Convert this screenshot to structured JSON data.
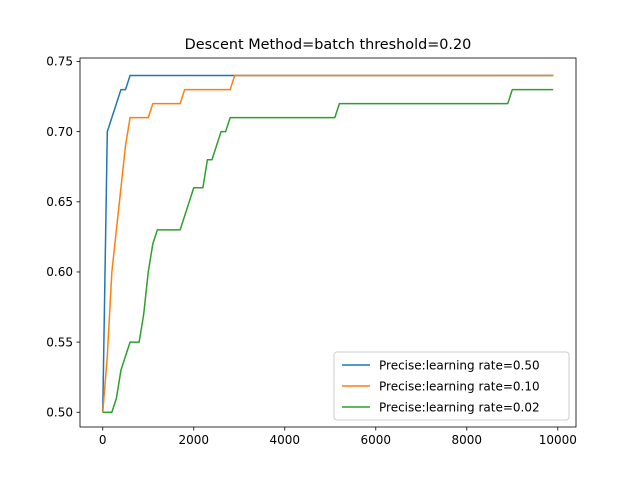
{
  "chart_data": {
    "type": "line",
    "title": "Descent Method=batch threshold=0.20",
    "xlabel": "",
    "ylabel": "",
    "xlim": [
      -500,
      10400
    ],
    "ylim": [
      0.4895,
      0.7525
    ],
    "x_ticks": [
      0,
      2000,
      4000,
      6000,
      8000,
      10000
    ],
    "y_ticks": [
      0.5,
      0.55,
      0.6,
      0.65,
      0.7,
      0.75
    ],
    "x_tick_labels": [
      "0",
      "2000",
      "4000",
      "6000",
      "8000",
      "10000"
    ],
    "y_tick_labels": [
      "0.50",
      "0.55",
      "0.60",
      "0.65",
      "0.70",
      "0.75"
    ],
    "grid": false,
    "legend_position": "lower-right",
    "series": [
      {
        "name": "Precise:learning rate=0.50",
        "color": "#1f77b4",
        "x": [
          0,
          100,
          200,
          300,
          400,
          500,
          600,
          700,
          800,
          2800,
          2900,
          9900
        ],
        "y": [
          0.5,
          0.7,
          0.71,
          0.72,
          0.73,
          0.73,
          0.74,
          0.74,
          0.74,
          0.74,
          0.74,
          0.74
        ]
      },
      {
        "name": "Precise:learning rate=0.10",
        "color": "#ff7f0e",
        "x": [
          0,
          100,
          200,
          300,
          400,
          500,
          600,
          700,
          800,
          900,
          1000,
          1100,
          1200,
          1300,
          1600,
          1700,
          1800,
          1900,
          2000,
          2700,
          2800,
          2900,
          3000,
          9900
        ],
        "y": [
          0.5,
          0.54,
          0.6,
          0.63,
          0.66,
          0.69,
          0.71,
          0.71,
          0.71,
          0.71,
          0.71,
          0.72,
          0.72,
          0.72,
          0.72,
          0.72,
          0.73,
          0.73,
          0.73,
          0.73,
          0.73,
          0.74,
          0.74,
          0.74
        ]
      },
      {
        "name": "Precise:learning rate=0.02",
        "color": "#2ca02c",
        "x": [
          0,
          100,
          200,
          300,
          400,
          500,
          600,
          700,
          800,
          900,
          1000,
          1100,
          1200,
          1300,
          1500,
          1700,
          1800,
          1900,
          2000,
          2100,
          2200,
          2300,
          2400,
          2500,
          2600,
          2700,
          2800,
          2900,
          3000,
          5100,
          5200,
          5300,
          8900,
          9000,
          9900
        ],
        "y": [
          0.5,
          0.5,
          0.5,
          0.51,
          0.53,
          0.54,
          0.55,
          0.55,
          0.55,
          0.57,
          0.6,
          0.62,
          0.63,
          0.63,
          0.63,
          0.63,
          0.64,
          0.65,
          0.66,
          0.66,
          0.66,
          0.68,
          0.68,
          0.69,
          0.7,
          0.7,
          0.71,
          0.71,
          0.71,
          0.71,
          0.72,
          0.72,
          0.72,
          0.73,
          0.73
        ]
      }
    ]
  }
}
